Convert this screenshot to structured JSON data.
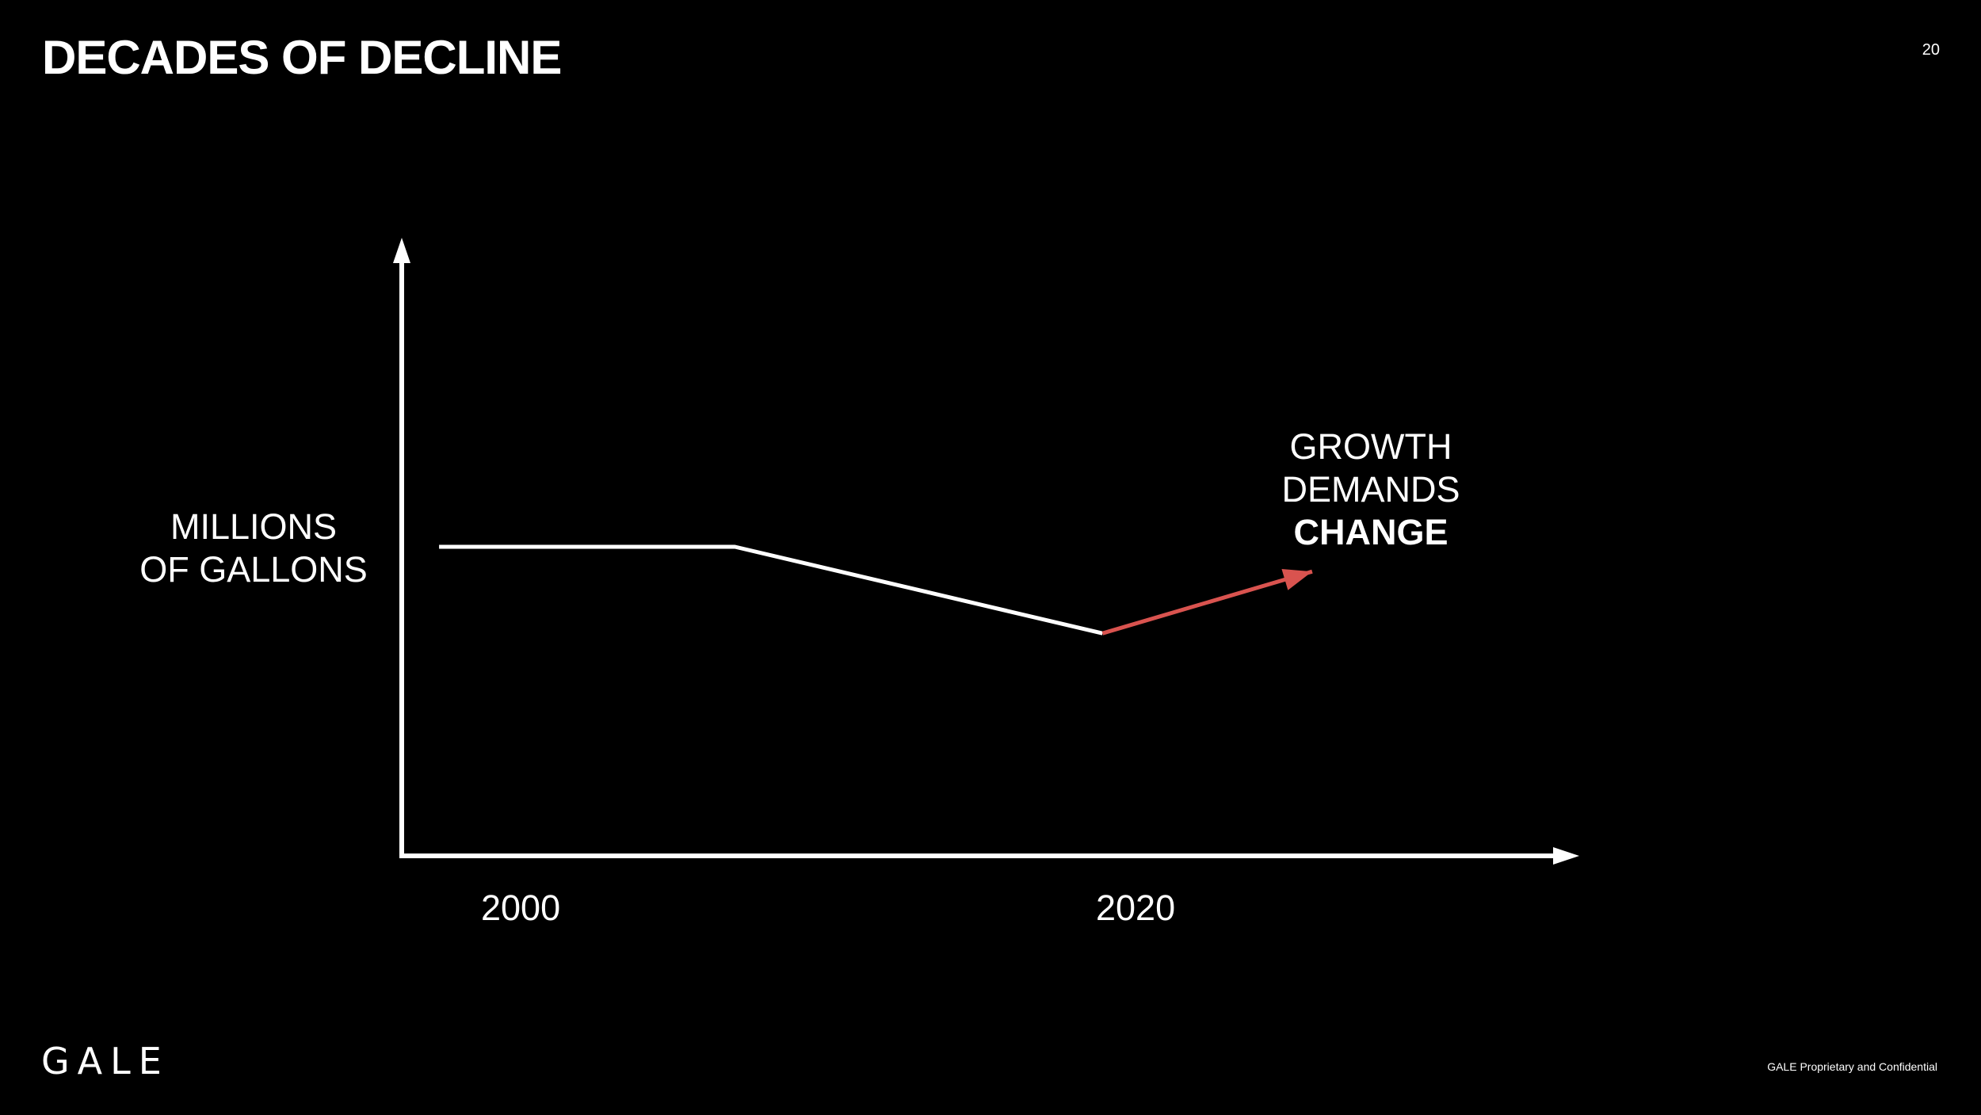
{
  "slide": {
    "title": "DECADES OF DECLINE",
    "page_number": "20",
    "logo_text": "GALE",
    "footer": "GALE Proprietary and Confidential"
  },
  "chart_data": {
    "type": "line",
    "ylabel": [
      "MILLIONS",
      "OF GALLONS"
    ],
    "x_ticks": [
      "2000",
      "2020"
    ],
    "annotation": {
      "lines": [
        "GROWTH",
        "DEMANDS"
      ],
      "emphasis": "CHANGE"
    },
    "x_domain": [
      1994,
      2035
    ],
    "y_domain": [
      0,
      10
    ],
    "series": [
      {
        "x": [
          1995.3,
          2005.6,
          2018.4
        ],
        "y": [
          5.0,
          5.0,
          3.6
        ],
        "color": "#ffffff"
      },
      {
        "x": [
          2018.4,
          2025.7
        ],
        "y": [
          3.6,
          4.6
        ],
        "color": "#d9534f",
        "arrow": true
      }
    ],
    "grid": false,
    "legend": "none"
  }
}
